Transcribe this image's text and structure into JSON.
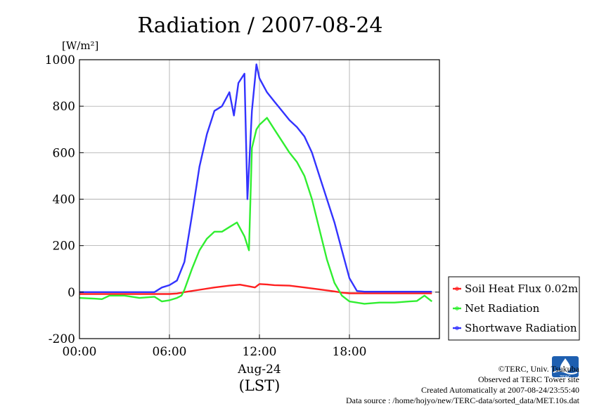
{
  "footer": {
    "copyright": "©TERC, Univ. Tsukuba",
    "site": "Observed at TERC Tower site",
    "created": "Created Automatically at 2007-08-24/23:55:40",
    "source": "Data source : /home/hojyo/new/TERC-data/sorted_data/MET.10s.dat"
  },
  "logo": {
    "text": "TERC"
  },
  "chart_data": {
    "type": "line",
    "title": "Radiation / 2007-08-24",
    "ylabel": "[W/m²]",
    "xlabel": "(LST)",
    "x_date_label": "Aug-24",
    "xlim": [
      0,
      24
    ],
    "ylim": [
      -200,
      1000
    ],
    "xticks": [
      0,
      6,
      12,
      18
    ],
    "xtick_labels": [
      "00:00",
      "06:00",
      "12:00",
      "18:00"
    ],
    "yticks": [
      -200,
      0,
      200,
      400,
      600,
      800,
      1000
    ],
    "grid": true,
    "legend_position": "right-bottom-outside",
    "series": [
      {
        "name": "Soil Heat Flux 0.02m",
        "color": "#ff2020",
        "x": [
          0,
          2,
          4,
          6,
          6.5,
          7,
          8,
          9,
          10,
          10.7,
          11.3,
          11.7,
          12,
          12.5,
          13,
          14,
          15,
          16,
          17,
          17.5,
          18,
          20,
          22,
          23.5
        ],
        "y": [
          -8,
          -8,
          -8,
          -8,
          -6,
          0,
          10,
          20,
          28,
          32,
          25,
          20,
          35,
          33,
          30,
          28,
          20,
          12,
          3,
          -2,
          -5,
          -5,
          -5,
          -5
        ]
      },
      {
        "name": "Net Radiation",
        "color": "#30ee30",
        "x": [
          0,
          1,
          1.5,
          2,
          3,
          4,
          5,
          5.5,
          6,
          6.5,
          6.8,
          7,
          7.5,
          8,
          8.5,
          9,
          9.5,
          10,
          10.5,
          11,
          11.3,
          11.5,
          11.8,
          12,
          12.5,
          13,
          13.5,
          14,
          14.5,
          15,
          15.5,
          16,
          16.5,
          17,
          17.5,
          18,
          19,
          20,
          21,
          22,
          22.5,
          23,
          23.5
        ],
        "y": [
          -25,
          -28,
          -30,
          -15,
          -15,
          -25,
          -20,
          -40,
          -35,
          -25,
          -15,
          10,
          100,
          180,
          230,
          260,
          260,
          280,
          300,
          240,
          180,
          620,
          700,
          720,
          750,
          700,
          650,
          600,
          560,
          500,
          400,
          270,
          140,
          40,
          -15,
          -40,
          -50,
          -45,
          -45,
          -40,
          -38,
          -15,
          -40
        ]
      },
      {
        "name": "Shortwave Radiation",
        "color": "#3333ff",
        "x": [
          0,
          2,
          4,
          5,
          5.5,
          6,
          6.5,
          7,
          7.5,
          8,
          8.5,
          9,
          9.5,
          10,
          10.3,
          10.6,
          11,
          11.2,
          11.5,
          11.8,
          12,
          12.5,
          13,
          13.5,
          14,
          14.5,
          15,
          15.5,
          16,
          16.5,
          17,
          17.5,
          18,
          18.5,
          19,
          20,
          22,
          23.5
        ],
        "y": [
          0,
          0,
          0,
          0,
          20,
          30,
          50,
          130,
          330,
          540,
          680,
          780,
          800,
          860,
          760,
          900,
          940,
          400,
          780,
          980,
          920,
          860,
          820,
          780,
          740,
          710,
          670,
          600,
          500,
          400,
          300,
          180,
          60,
          5,
          2,
          2,
          2,
          2
        ]
      }
    ]
  }
}
